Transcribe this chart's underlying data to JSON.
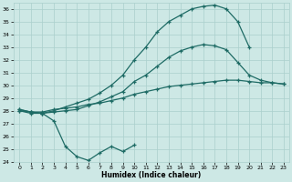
{
  "xlabel": "Humidex (Indice chaleur)",
  "bg_color": "#cde8e5",
  "grid_color": "#aacfcc",
  "line_color": "#1e6b65",
  "ylim": [
    24,
    36.5
  ],
  "xlim": [
    -0.5,
    23.5
  ],
  "yticks": [
    24,
    25,
    26,
    27,
    28,
    29,
    30,
    31,
    32,
    33,
    34,
    35,
    36
  ],
  "xticks": [
    0,
    1,
    2,
    3,
    4,
    5,
    6,
    7,
    8,
    9,
    10,
    11,
    12,
    13,
    14,
    15,
    16,
    17,
    18,
    19,
    20,
    21,
    22,
    23
  ],
  "line_dip_x": [
    0,
    1,
    2,
    3,
    4,
    5,
    6,
    7,
    8,
    9,
    10
  ],
  "line_dip_y": [
    28.0,
    27.8,
    27.8,
    27.2,
    25.2,
    24.4,
    24.1,
    24.7,
    25.2,
    24.8,
    25.3
  ],
  "line_flat_x": [
    0,
    1,
    2,
    3,
    4,
    5,
    6,
    7,
    8,
    9,
    10,
    11,
    12,
    13,
    14,
    15,
    16,
    17,
    18,
    19,
    20,
    21,
    22,
    23
  ],
  "line_flat_y": [
    28.1,
    27.9,
    27.9,
    28.1,
    28.2,
    28.3,
    28.5,
    28.6,
    28.8,
    29.0,
    29.3,
    29.5,
    29.7,
    29.9,
    30.0,
    30.1,
    30.2,
    30.3,
    30.4,
    30.4,
    30.3,
    30.2,
    30.2,
    30.1
  ],
  "line_mid_x": [
    0,
    1,
    2,
    3,
    4,
    5,
    6,
    7,
    8,
    9,
    10,
    11,
    12,
    13,
    14,
    15,
    16,
    17,
    18,
    19,
    20,
    21,
    22,
    23
  ],
  "line_mid_y": [
    28.0,
    27.9,
    27.8,
    27.9,
    28.0,
    28.1,
    28.4,
    28.7,
    29.1,
    29.5,
    30.3,
    30.8,
    31.5,
    32.2,
    32.7,
    33.0,
    33.2,
    33.1,
    32.8,
    31.8,
    30.8,
    30.4,
    30.2,
    30.1
  ],
  "line_top_x": [
    0,
    1,
    2,
    3,
    4,
    5,
    6,
    7,
    8,
    9,
    10,
    11,
    12,
    13,
    14,
    15,
    16,
    17,
    18,
    19,
    20
  ],
  "line_top_y": [
    28.1,
    27.9,
    27.8,
    28.0,
    28.3,
    28.6,
    28.9,
    29.4,
    30.0,
    30.8,
    32.0,
    33.0,
    34.2,
    35.0,
    35.5,
    36.0,
    36.2,
    36.3,
    36.0,
    35.0,
    33.0
  ]
}
